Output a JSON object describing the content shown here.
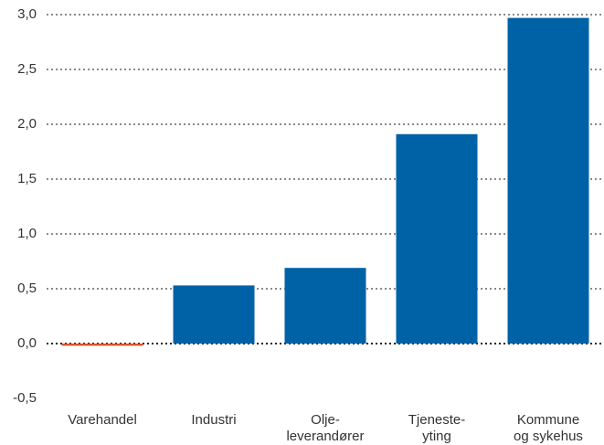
{
  "chart_data": {
    "type": "bar",
    "categories": [
      "Varehandel",
      "Industri",
      "Olje-\nleverandører",
      "Tjeneste-\nyting",
      "Kommune\nog sykehus"
    ],
    "values": [
      -0.02,
      0.53,
      0.69,
      1.91,
      2.97
    ],
    "colors": [
      "#d9542b",
      "#0062a6",
      "#0062a6",
      "#0062a6",
      "#0062a6"
    ],
    "ylim": [
      -0.5,
      3.0
    ],
    "yticks": [
      {
        "value": -0.5,
        "label": "-0,5"
      },
      {
        "value": 0,
        "label": "0,0"
      },
      {
        "value": 0.5,
        "label": "0,5"
      },
      {
        "value": 1.0,
        "label": "1,0"
      },
      {
        "value": 1.5,
        "label": "1,5"
      },
      {
        "value": 2.0,
        "label": "2,0"
      },
      {
        "value": 2.5,
        "label": "2,5"
      },
      {
        "value": 3.0,
        "label": "3,0"
      }
    ],
    "grid": true
  }
}
